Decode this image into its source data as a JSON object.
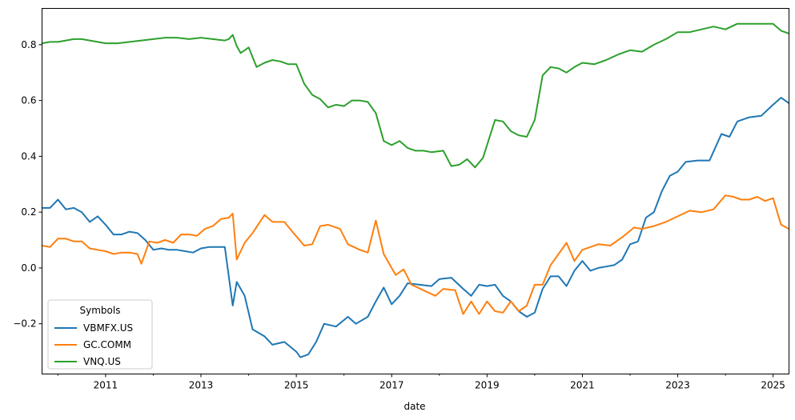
{
  "chart_data": {
    "type": "line",
    "title": "",
    "xlabel": "date",
    "ylabel": "",
    "xlim": [
      "2009-09",
      "2025-05"
    ],
    "ylim": [
      -0.38,
      0.93
    ],
    "grid": false,
    "x_ticks_major": [
      "2011",
      "2013",
      "2015",
      "2017",
      "2019",
      "2021",
      "2023",
      "2025"
    ],
    "x_ticks_minor": [
      "2010",
      "2012",
      "2014",
      "2016",
      "2018",
      "2020",
      "2022",
      "2024"
    ],
    "y_ticks": [
      -0.2,
      0.0,
      0.2,
      0.4,
      0.6,
      0.8
    ],
    "y_tick_labels": [
      "−0.2",
      "0.0",
      "0.2",
      "0.4",
      "0.6",
      "0.8"
    ],
    "legend": {
      "title": "Symbols",
      "placement": "lower-left",
      "entries": [
        "VBMFX.US",
        "GC.COMM",
        "VNQ.US"
      ]
    },
    "series": [
      {
        "name": "VBMFX.US",
        "color": "#1f77b4",
        "points": [
          [
            "2009-09",
            0.215
          ],
          [
            "2009-11",
            0.215
          ],
          [
            "2010-01",
            0.245
          ],
          [
            "2010-03",
            0.21
          ],
          [
            "2010-05",
            0.215
          ],
          [
            "2010-07",
            0.2
          ],
          [
            "2010-09",
            0.165
          ],
          [
            "2010-11",
            0.185
          ],
          [
            "2011-01",
            0.155
          ],
          [
            "2011-03",
            0.12
          ],
          [
            "2011-05",
            0.12
          ],
          [
            "2011-07",
            0.13
          ],
          [
            "2011-09",
            0.125
          ],
          [
            "2011-11",
            0.1
          ],
          [
            "2012-01",
            0.065
          ],
          [
            "2012-03",
            0.07
          ],
          [
            "2012-05",
            0.065
          ],
          [
            "2012-07",
            0.065
          ],
          [
            "2012-09",
            0.06
          ],
          [
            "2012-11",
            0.055
          ],
          [
            "2013-01",
            0.07
          ],
          [
            "2013-03",
            0.075
          ],
          [
            "2013-05",
            0.075
          ],
          [
            "2013-07",
            0.075
          ],
          [
            "2013-09",
            -0.135
          ],
          [
            "2013-10",
            -0.05
          ],
          [
            "2013-12",
            -0.1
          ],
          [
            "2014-02",
            -0.22
          ],
          [
            "2014-05",
            -0.245
          ],
          [
            "2014-07",
            -0.275
          ],
          [
            "2014-10",
            -0.265
          ],
          [
            "2015-01",
            -0.3
          ],
          [
            "2015-02",
            -0.32
          ],
          [
            "2015-04",
            -0.31
          ],
          [
            "2015-06",
            -0.265
          ],
          [
            "2015-08",
            -0.2
          ],
          [
            "2015-11",
            -0.21
          ],
          [
            "2016-02",
            -0.175
          ],
          [
            "2016-04",
            -0.2
          ],
          [
            "2016-07",
            -0.175
          ],
          [
            "2016-09",
            -0.12
          ],
          [
            "2016-11",
            -0.07
          ],
          [
            "2017-01",
            -0.13
          ],
          [
            "2017-03",
            -0.1
          ],
          [
            "2017-05",
            -0.055
          ],
          [
            "2017-08",
            -0.06
          ],
          [
            "2017-11",
            -0.065
          ],
          [
            "2018-01",
            -0.04
          ],
          [
            "2018-04",
            -0.035
          ],
          [
            "2018-07",
            -0.075
          ],
          [
            "2018-09",
            -0.1
          ],
          [
            "2018-11",
            -0.06
          ],
          [
            "2019-01",
            -0.065
          ],
          [
            "2019-03",
            -0.06
          ],
          [
            "2019-05",
            -0.1
          ],
          [
            "2019-07",
            -0.12
          ],
          [
            "2019-09",
            -0.155
          ],
          [
            "2019-11",
            -0.175
          ],
          [
            "2020-01",
            -0.16
          ],
          [
            "2020-03",
            -0.075
          ],
          [
            "2020-05",
            -0.03
          ],
          [
            "2020-07",
            -0.03
          ],
          [
            "2020-09",
            -0.065
          ],
          [
            "2020-11",
            -0.01
          ],
          [
            "2021-01",
            0.025
          ],
          [
            "2021-03",
            -0.01
          ],
          [
            "2021-05",
            0.0
          ],
          [
            "2021-07",
            0.005
          ],
          [
            "2021-09",
            0.01
          ],
          [
            "2021-11",
            0.03
          ],
          [
            "2022-01",
            0.085
          ],
          [
            "2022-03",
            0.095
          ],
          [
            "2022-05",
            0.18
          ],
          [
            "2022-07",
            0.2
          ],
          [
            "2022-09",
            0.275
          ],
          [
            "2022-11",
            0.33
          ],
          [
            "2023-01",
            0.345
          ],
          [
            "2023-03",
            0.38
          ],
          [
            "2023-06",
            0.385
          ],
          [
            "2023-09",
            0.385
          ],
          [
            "2023-12",
            0.48
          ],
          [
            "2024-02",
            0.47
          ],
          [
            "2024-04",
            0.525
          ],
          [
            "2024-07",
            0.54
          ],
          [
            "2024-10",
            0.545
          ],
          [
            "2025-01",
            0.585
          ],
          [
            "2025-03",
            0.61
          ],
          [
            "2025-05",
            0.59
          ]
        ]
      },
      {
        "name": "GC.COMM",
        "color": "#ff7f0e",
        "points": [
          [
            "2009-09",
            0.08
          ],
          [
            "2009-11",
            0.075
          ],
          [
            "2010-01",
            0.105
          ],
          [
            "2010-03",
            0.105
          ],
          [
            "2010-05",
            0.095
          ],
          [
            "2010-07",
            0.095
          ],
          [
            "2010-09",
            0.07
          ],
          [
            "2010-11",
            0.065
          ],
          [
            "2011-01",
            0.06
          ],
          [
            "2011-03",
            0.05
          ],
          [
            "2011-05",
            0.055
          ],
          [
            "2011-07",
            0.055
          ],
          [
            "2011-09",
            0.05
          ],
          [
            "2011-10",
            0.015
          ],
          [
            "2011-12",
            0.095
          ],
          [
            "2012-02",
            0.09
          ],
          [
            "2012-04",
            0.1
          ],
          [
            "2012-06",
            0.09
          ],
          [
            "2012-08",
            0.12
          ],
          [
            "2012-10",
            0.12
          ],
          [
            "2012-12",
            0.115
          ],
          [
            "2013-02",
            0.14
          ],
          [
            "2013-04",
            0.15
          ],
          [
            "2013-06",
            0.175
          ],
          [
            "2013-08",
            0.18
          ],
          [
            "2013-09",
            0.195
          ],
          [
            "2013-10",
            0.03
          ],
          [
            "2013-12",
            0.09
          ],
          [
            "2014-02",
            0.125
          ],
          [
            "2014-05",
            0.19
          ],
          [
            "2014-07",
            0.165
          ],
          [
            "2014-10",
            0.165
          ],
          [
            "2014-12",
            0.13
          ],
          [
            "2015-03",
            0.08
          ],
          [
            "2015-05",
            0.085
          ],
          [
            "2015-07",
            0.15
          ],
          [
            "2015-09",
            0.155
          ],
          [
            "2015-12",
            0.14
          ],
          [
            "2016-02",
            0.085
          ],
          [
            "2016-05",
            0.065
          ],
          [
            "2016-07",
            0.055
          ],
          [
            "2016-09",
            0.17
          ],
          [
            "2016-11",
            0.05
          ],
          [
            "2017-02",
            -0.025
          ],
          [
            "2017-04",
            -0.005
          ],
          [
            "2017-06",
            -0.06
          ],
          [
            "2017-09",
            -0.08
          ],
          [
            "2017-12",
            -0.1
          ],
          [
            "2018-02",
            -0.075
          ],
          [
            "2018-05",
            -0.08
          ],
          [
            "2018-07",
            -0.165
          ],
          [
            "2018-09",
            -0.12
          ],
          [
            "2018-11",
            -0.165
          ],
          [
            "2019-01",
            -0.12
          ],
          [
            "2019-03",
            -0.155
          ],
          [
            "2019-05",
            -0.16
          ],
          [
            "2019-07",
            -0.12
          ],
          [
            "2019-09",
            -0.155
          ],
          [
            "2019-11",
            -0.135
          ],
          [
            "2020-01",
            -0.06
          ],
          [
            "2020-03",
            -0.06
          ],
          [
            "2020-05",
            0.01
          ],
          [
            "2020-07",
            0.05
          ],
          [
            "2020-09",
            0.09
          ],
          [
            "2020-11",
            0.025
          ],
          [
            "2021-01",
            0.065
          ],
          [
            "2021-03",
            0.075
          ],
          [
            "2021-05",
            0.085
          ],
          [
            "2021-08",
            0.08
          ],
          [
            "2021-11",
            0.11
          ],
          [
            "2022-02",
            0.145
          ],
          [
            "2022-04",
            0.14
          ],
          [
            "2022-07",
            0.15
          ],
          [
            "2022-10",
            0.165
          ],
          [
            "2023-01",
            0.185
          ],
          [
            "2023-04",
            0.205
          ],
          [
            "2023-07",
            0.2
          ],
          [
            "2023-10",
            0.21
          ],
          [
            "2024-01",
            0.26
          ],
          [
            "2024-03",
            0.255
          ],
          [
            "2024-05",
            0.245
          ],
          [
            "2024-07",
            0.245
          ],
          [
            "2024-09",
            0.255
          ],
          [
            "2024-11",
            0.24
          ],
          [
            "2025-01",
            0.25
          ],
          [
            "2025-03",
            0.155
          ],
          [
            "2025-05",
            0.14
          ]
        ]
      },
      {
        "name": "VNQ.US",
        "color": "#2ca02c",
        "points": [
          [
            "2009-09",
            0.805
          ],
          [
            "2009-11",
            0.81
          ],
          [
            "2010-01",
            0.81
          ],
          [
            "2010-03",
            0.815
          ],
          [
            "2010-05",
            0.82
          ],
          [
            "2010-07",
            0.82
          ],
          [
            "2010-09",
            0.815
          ],
          [
            "2010-11",
            0.81
          ],
          [
            "2011-01",
            0.805
          ],
          [
            "2011-04",
            0.805
          ],
          [
            "2011-07",
            0.81
          ],
          [
            "2011-10",
            0.815
          ],
          [
            "2012-01",
            0.82
          ],
          [
            "2012-04",
            0.825
          ],
          [
            "2012-07",
            0.825
          ],
          [
            "2012-10",
            0.82
          ],
          [
            "2013-01",
            0.825
          ],
          [
            "2013-04",
            0.82
          ],
          [
            "2013-07",
            0.815
          ],
          [
            "2013-08",
            0.82
          ],
          [
            "2013-09",
            0.835
          ],
          [
            "2013-10",
            0.795
          ],
          [
            "2013-11",
            0.77
          ],
          [
            "2014-01",
            0.79
          ],
          [
            "2014-03",
            0.72
          ],
          [
            "2014-05",
            0.735
          ],
          [
            "2014-07",
            0.745
          ],
          [
            "2014-09",
            0.74
          ],
          [
            "2014-11",
            0.73
          ],
          [
            "2015-01",
            0.73
          ],
          [
            "2015-03",
            0.66
          ],
          [
            "2015-05",
            0.62
          ],
          [
            "2015-07",
            0.605
          ],
          [
            "2015-09",
            0.575
          ],
          [
            "2015-11",
            0.585
          ],
          [
            "2016-01",
            0.58
          ],
          [
            "2016-03",
            0.6
          ],
          [
            "2016-05",
            0.6
          ],
          [
            "2016-07",
            0.595
          ],
          [
            "2016-09",
            0.555
          ],
          [
            "2016-11",
            0.455
          ],
          [
            "2017-01",
            0.44
          ],
          [
            "2017-03",
            0.455
          ],
          [
            "2017-05",
            0.43
          ],
          [
            "2017-07",
            0.42
          ],
          [
            "2017-09",
            0.42
          ],
          [
            "2017-11",
            0.415
          ],
          [
            "2018-02",
            0.42
          ],
          [
            "2018-04",
            0.365
          ],
          [
            "2018-06",
            0.37
          ],
          [
            "2018-08",
            0.39
          ],
          [
            "2018-10",
            0.36
          ],
          [
            "2018-12",
            0.395
          ],
          [
            "2019-03",
            0.53
          ],
          [
            "2019-05",
            0.525
          ],
          [
            "2019-07",
            0.49
          ],
          [
            "2019-09",
            0.475
          ],
          [
            "2019-11",
            0.47
          ],
          [
            "2020-01",
            0.53
          ],
          [
            "2020-03",
            0.69
          ],
          [
            "2020-05",
            0.72
          ],
          [
            "2020-07",
            0.715
          ],
          [
            "2020-09",
            0.7
          ],
          [
            "2020-11",
            0.72
          ],
          [
            "2021-01",
            0.735
          ],
          [
            "2021-04",
            0.73
          ],
          [
            "2021-07",
            0.745
          ],
          [
            "2021-10",
            0.765
          ],
          [
            "2022-01",
            0.78
          ],
          [
            "2022-04",
            0.775
          ],
          [
            "2022-07",
            0.8
          ],
          [
            "2022-10",
            0.82
          ],
          [
            "2023-01",
            0.845
          ],
          [
            "2023-04",
            0.845
          ],
          [
            "2023-07",
            0.855
          ],
          [
            "2023-10",
            0.865
          ],
          [
            "2024-01",
            0.855
          ],
          [
            "2024-04",
            0.875
          ],
          [
            "2024-07",
            0.875
          ],
          [
            "2024-10",
            0.875
          ],
          [
            "2025-01",
            0.875
          ],
          [
            "2025-03",
            0.85
          ],
          [
            "2025-05",
            0.84
          ]
        ]
      }
    ]
  }
}
